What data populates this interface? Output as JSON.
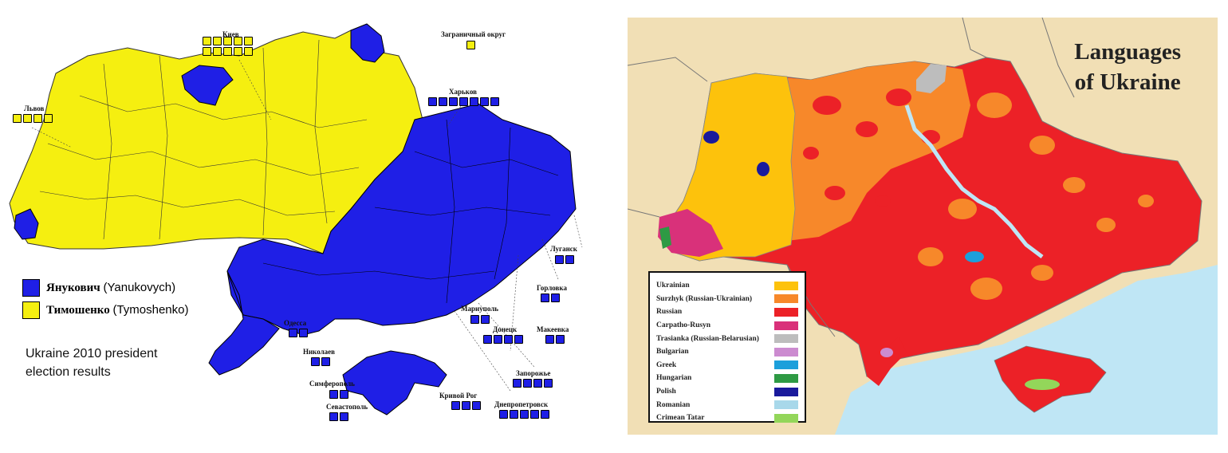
{
  "left_map": {
    "legend": [
      {
        "name_ru": "Янукович",
        "name_lat": "(Yanukovych)",
        "color": "#1f1fe6"
      },
      {
        "name_ru": "Тимошенко",
        "name_lat": "(Tymoshenko)",
        "color": "#f5ef10"
      }
    ],
    "caption_line1": "Ukraine 2010 president",
    "caption_line2": "election results",
    "cities": [
      {
        "name": "Киев",
        "seats": 10,
        "color": "yellow"
      },
      {
        "name": "Заграничный округ",
        "seats": 1,
        "color": "yellow"
      },
      {
        "name": "Львов",
        "seats": 4,
        "color": "yellow"
      },
      {
        "name": "Харьков",
        "seats": 7,
        "color": "blue"
      },
      {
        "name": "Луганск",
        "seats": 2,
        "color": "blue"
      },
      {
        "name": "Горловка",
        "seats": 2,
        "color": "blue"
      },
      {
        "name": "Мариуполь",
        "seats": 2,
        "color": "blue"
      },
      {
        "name": "Одесса",
        "seats": 2,
        "color": "blue"
      },
      {
        "name": "Донецк",
        "seats": 4,
        "color": "blue"
      },
      {
        "name": "Макеевка",
        "seats": 2,
        "color": "blue"
      },
      {
        "name": "Николаев",
        "seats": 2,
        "color": "blue"
      },
      {
        "name": "Запорожье",
        "seats": 4,
        "color": "blue"
      },
      {
        "name": "Симферополь",
        "seats": 2,
        "color": "blue"
      },
      {
        "name": "Кривой Рог",
        "seats": 3,
        "color": "blue"
      },
      {
        "name": "Севастополь",
        "seats": 2,
        "color": "blue"
      },
      {
        "name": "Днепропетровск",
        "seats": 5,
        "color": "blue"
      }
    ]
  },
  "right_map": {
    "title_line1": "Languages",
    "title_line2": "of Ukraine",
    "legend": [
      {
        "label": "Ukrainian",
        "color": "#fdc20c"
      },
      {
        "label": "Surzhyk (Russian-Ukrainian)",
        "color": "#f7882a"
      },
      {
        "label": "Russian",
        "color": "#ec2127"
      },
      {
        "label": "Carpatho-Rusyn",
        "color": "#d9317a"
      },
      {
        "label": "Trasianka (Russian-Belarusian)",
        "color": "#bdbdbd"
      },
      {
        "label": "Bulgarian",
        "color": "#cc8bd0"
      },
      {
        "label": "Greek",
        "color": "#1c9fdb"
      },
      {
        "label": "Hungarian",
        "color": "#2e9a44"
      },
      {
        "label": "Polish",
        "color": "#1a1a9c"
      },
      {
        "label": "Romanian",
        "color": "#a8d8ea"
      },
      {
        "label": "Crimean Tatar",
        "color": "#93d65a"
      }
    ]
  }
}
